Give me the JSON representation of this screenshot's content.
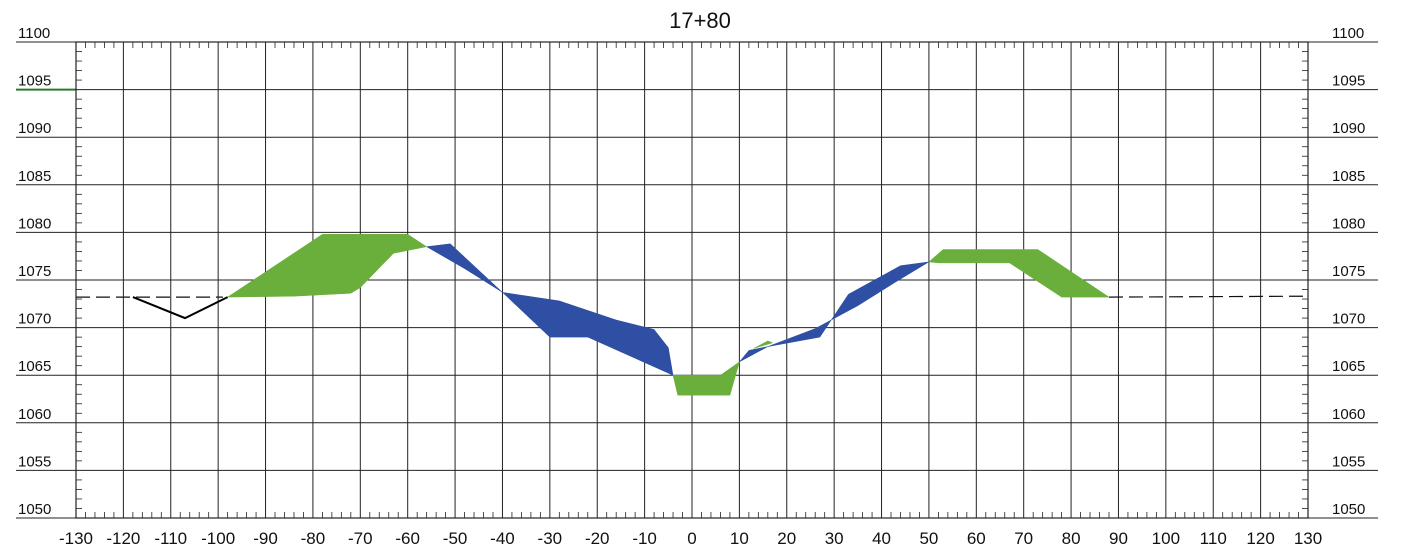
{
  "chart_data": {
    "type": "area",
    "title": "17+80",
    "xlabel": "",
    "ylabel": "",
    "xlim": [
      -130,
      130
    ],
    "ylim": [
      1050,
      1100
    ],
    "x_ticks": [
      -130,
      -120,
      -110,
      -100,
      -90,
      -80,
      -70,
      -60,
      -50,
      -40,
      -30,
      -20,
      -10,
      0,
      10,
      20,
      30,
      40,
      50,
      60,
      70,
      80,
      90,
      100,
      110,
      120,
      130
    ],
    "y_ticks": [
      1050,
      1055,
      1060,
      1065,
      1070,
      1075,
      1080,
      1085,
      1090,
      1095,
      1100
    ],
    "grid": true,
    "colors": {
      "fill": "#6aaf3c",
      "cut": "#2e4fa3",
      "grid": "#222222",
      "accent_y1095": "#2a7a2a",
      "ground": "#000000"
    },
    "existing_ground": [
      [
        -130,
        1073.2
      ],
      [
        -118,
        1073.2
      ],
      [
        -107,
        1071.0
      ],
      [
        -98,
        1073.2
      ],
      [
        -84,
        1073.3
      ],
      [
        -72,
        1073.6
      ],
      [
        -70,
        1074.2
      ],
      [
        -63,
        1077.8
      ],
      [
        -56,
        1078.5
      ],
      [
        -48,
        1076.2
      ],
      [
        -40,
        1073.7
      ],
      [
        -28,
        1072.8
      ],
      [
        -16,
        1070.8
      ],
      [
        -8,
        1069.8
      ],
      [
        -5,
        1067.9
      ],
      [
        -4,
        1065.0
      ],
      [
        10,
        1066.4
      ],
      [
        16,
        1068.0
      ],
      [
        26,
        1069.9
      ],
      [
        35,
        1072.3
      ],
      [
        43,
        1074.8
      ],
      [
        50,
        1076.9
      ],
      [
        67,
        1074.0
      ],
      [
        80,
        1073.3
      ],
      [
        130,
        1073.3
      ]
    ],
    "fill_regions": [
      {
        "label": "fill",
        "points": [
          [
            -98,
            1073.2
          ],
          [
            -78,
            1079.8
          ],
          [
            -60,
            1079.8
          ],
          [
            -56,
            1078.5
          ],
          [
            -63,
            1077.8
          ],
          [
            -70,
            1074.2
          ],
          [
            -72,
            1073.6
          ],
          [
            -84,
            1073.3
          ]
        ]
      },
      {
        "label": "fill",
        "points": [
          [
            -4,
            1065.0
          ],
          [
            6,
            1065.0
          ],
          [
            10,
            1066.4
          ],
          [
            8,
            1062.9
          ],
          [
            -3,
            1062.9
          ]
        ]
      },
      {
        "label": "fill",
        "points": [
          [
            13,
            1067.8
          ],
          [
            16,
            1068.6
          ],
          [
            17,
            1068.4
          ]
        ]
      },
      {
        "label": "fill",
        "points": [
          [
            50,
            1076.9
          ],
          [
            53,
            1078.2
          ],
          [
            73,
            1078.2
          ],
          [
            88,
            1073.2
          ],
          [
            78,
            1073.2
          ],
          [
            67,
            1076.8
          ],
          [
            52,
            1076.8
          ]
        ]
      }
    ],
    "cut_regions": [
      {
        "label": "cut",
        "points": [
          [
            -56,
            1078.5
          ],
          [
            -51,
            1078.8
          ],
          [
            -40,
            1073.7
          ],
          [
            -48,
            1076.2
          ]
        ]
      },
      {
        "label": "cut",
        "points": [
          [
            -40,
            1073.7
          ],
          [
            -30,
            1069.0
          ],
          [
            -22,
            1069.0
          ],
          [
            -4,
            1065.0
          ],
          [
            -5,
            1067.9
          ],
          [
            -8,
            1069.8
          ],
          [
            -16,
            1070.8
          ],
          [
            -28,
            1072.8
          ]
        ]
      },
      {
        "label": "cut",
        "points": [
          [
            10,
            1066.4
          ],
          [
            12,
            1067.6
          ],
          [
            16,
            1068.0
          ]
        ]
      },
      {
        "label": "cut",
        "points": [
          [
            16,
            1068.0
          ],
          [
            27,
            1069.0
          ],
          [
            33,
            1073.5
          ],
          [
            44,
            1076.5
          ],
          [
            50,
            1076.9
          ],
          [
            43,
            1074.8
          ],
          [
            35,
            1072.3
          ],
          [
            26,
            1069.9
          ]
        ]
      }
    ],
    "profile_line": [
      [
        -130,
        1073.2
      ],
      [
        -99,
        1073.2
      ],
      [
        -84,
        1073.3
      ],
      [
        -72,
        1073.6
      ],
      [
        -70,
        1074.2
      ],
      [
        -63,
        1077.8
      ],
      [
        -56,
        1078.5
      ],
      [
        -48,
        1076.2
      ],
      [
        -40,
        1073.7
      ],
      [
        -28,
        1072.8
      ],
      [
        -16,
        1070.8
      ],
      [
        -8,
        1069.8
      ],
      [
        -5,
        1067.9
      ],
      [
        -4,
        1065.0
      ],
      [
        10,
        1066.4
      ],
      [
        16,
        1068.0
      ],
      [
        26,
        1069.9
      ],
      [
        35,
        1072.3
      ],
      [
        43,
        1074.8
      ],
      [
        50,
        1076.9
      ],
      [
        67,
        1074.0
      ],
      [
        80,
        1073.3
      ],
      [
        88,
        1073.2
      ],
      [
        130,
        1073.2
      ]
    ],
    "ditch_line": [
      [
        -118,
        1073.2
      ],
      [
        -107,
        1071.0
      ],
      [
        -98,
        1073.2
      ]
    ]
  }
}
